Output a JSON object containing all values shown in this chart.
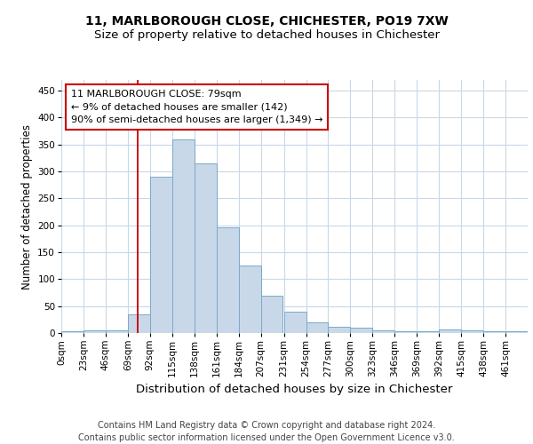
{
  "title1": "11, MARLBOROUGH CLOSE, CHICHESTER, PO19 7XW",
  "title2": "Size of property relative to detached houses in Chichester",
  "xlabel": "Distribution of detached houses by size in Chichester",
  "ylabel": "Number of detached properties",
  "bin_labels": [
    "0sqm",
    "23sqm",
    "46sqm",
    "69sqm",
    "92sqm",
    "115sqm",
    "138sqm",
    "161sqm",
    "184sqm",
    "207sqm",
    "231sqm",
    "254sqm",
    "277sqm",
    "300sqm",
    "323sqm",
    "346sqm",
    "369sqm",
    "392sqm",
    "415sqm",
    "438sqm",
    "461sqm"
  ],
  "bin_edges": [
    0,
    23,
    46,
    69,
    92,
    115,
    138,
    161,
    184,
    207,
    231,
    254,
    277,
    300,
    323,
    346,
    369,
    392,
    415,
    438,
    461
  ],
  "bar_heights": [
    4,
    5,
    5,
    35,
    290,
    360,
    315,
    197,
    126,
    70,
    40,
    20,
    12,
    10,
    5,
    4,
    4,
    6,
    5,
    3,
    3
  ],
  "bar_color": "#c8d8e8",
  "bar_edge_color": "#7aaac8",
  "property_size": 79,
  "vline_color": "#cc0000",
  "annotation_line1": "11 MARLBOROUGH CLOSE: 79sqm",
  "annotation_line2": "← 9% of detached houses are smaller (142)",
  "annotation_line3": "90% of semi-detached houses are larger (1,349) →",
  "annotation_box_color": "#ffffff",
  "annotation_box_edge": "#cc0000",
  "footer": "Contains HM Land Registry data © Crown copyright and database right 2024.\nContains public sector information licensed under the Open Government Licence v3.0.",
  "ylim": [
    0,
    470
  ],
  "yticks": [
    0,
    50,
    100,
    150,
    200,
    250,
    300,
    350,
    400,
    450
  ],
  "grid_color": "#c8d8e8",
  "background_color": "#ffffff",
  "title1_fontsize": 10,
  "title2_fontsize": 9.5,
  "xlabel_fontsize": 9.5,
  "ylabel_fontsize": 8.5,
  "tick_fontsize": 7.5,
  "annotation_fontsize": 8,
  "footer_fontsize": 7
}
